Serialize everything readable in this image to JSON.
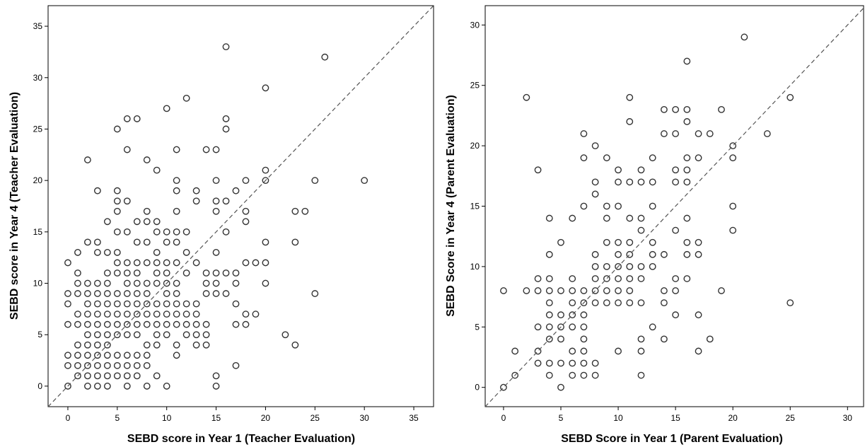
{
  "chart_data": [
    {
      "type": "scatter",
      "xlabel": "SEBD score in Year 1 (Teacher Evaluation)",
      "ylabel": "SEBD score in Year 4 (Teacher Evaluation)",
      "xlim": [
        -2,
        37
      ],
      "ylim": [
        -2,
        37
      ],
      "xticks": [
        0,
        5,
        10,
        15,
        20,
        25,
        30,
        35
      ],
      "yticks": [
        0,
        5,
        10,
        15,
        20,
        25,
        30,
        35
      ],
      "reference_line": "y = x (dashed)",
      "points": [
        [
          0,
          0
        ],
        [
          0,
          2
        ],
        [
          0,
          3
        ],
        [
          0,
          6
        ],
        [
          0,
          8
        ],
        [
          0,
          9
        ],
        [
          0,
          12
        ],
        [
          1,
          1
        ],
        [
          1,
          2
        ],
        [
          1,
          3
        ],
        [
          1,
          4
        ],
        [
          1,
          6
        ],
        [
          1,
          7
        ],
        [
          1,
          9
        ],
        [
          1,
          10
        ],
        [
          1,
          11
        ],
        [
          1,
          13
        ],
        [
          2,
          0
        ],
        [
          2,
          1
        ],
        [
          2,
          2
        ],
        [
          2,
          3
        ],
        [
          2,
          4
        ],
        [
          2,
          5
        ],
        [
          2,
          6
        ],
        [
          2,
          7
        ],
        [
          2,
          8
        ],
        [
          2,
          9
        ],
        [
          2,
          10
        ],
        [
          2,
          14
        ],
        [
          2,
          22
        ],
        [
          3,
          0
        ],
        [
          3,
          1
        ],
        [
          3,
          2
        ],
        [
          3,
          3
        ],
        [
          3,
          4
        ],
        [
          3,
          5
        ],
        [
          3,
          6
        ],
        [
          3,
          7
        ],
        [
          3,
          8
        ],
        [
          3,
          9
        ],
        [
          3,
          10
        ],
        [
          3,
          13
        ],
        [
          3,
          14
        ],
        [
          3,
          19
        ],
        [
          4,
          0
        ],
        [
          4,
          1
        ],
        [
          4,
          2
        ],
        [
          4,
          3
        ],
        [
          4,
          4
        ],
        [
          4,
          5
        ],
        [
          4,
          6
        ],
        [
          4,
          7
        ],
        [
          4,
          8
        ],
        [
          4,
          9
        ],
        [
          4,
          10
        ],
        [
          4,
          11
        ],
        [
          4,
          13
        ],
        [
          4,
          16
        ],
        [
          5,
          1
        ],
        [
          5,
          2
        ],
        [
          5,
          3
        ],
        [
          5,
          5
        ],
        [
          5,
          6
        ],
        [
          5,
          7
        ],
        [
          5,
          8
        ],
        [
          5,
          9
        ],
        [
          5,
          11
        ],
        [
          5,
          12
        ],
        [
          5,
          13
        ],
        [
          5,
          15
        ],
        [
          5,
          17
        ],
        [
          5,
          18
        ],
        [
          5,
          19
        ],
        [
          5,
          25
        ],
        [
          6,
          0
        ],
        [
          6,
          1
        ],
        [
          6,
          2
        ],
        [
          6,
          3
        ],
        [
          6,
          5
        ],
        [
          6,
          6
        ],
        [
          6,
          7
        ],
        [
          6,
          8
        ],
        [
          6,
          9
        ],
        [
          6,
          10
        ],
        [
          6,
          11
        ],
        [
          6,
          12
        ],
        [
          6,
          15
        ],
        [
          6,
          18
        ],
        [
          6,
          23
        ],
        [
          6,
          26
        ],
        [
          7,
          1
        ],
        [
          7,
          2
        ],
        [
          7,
          3
        ],
        [
          7,
          5
        ],
        [
          7,
          6
        ],
        [
          7,
          7
        ],
        [
          7,
          8
        ],
        [
          7,
          9
        ],
        [
          7,
          10
        ],
        [
          7,
          11
        ],
        [
          7,
          12
        ],
        [
          7,
          14
        ],
        [
          7,
          16
        ],
        [
          7,
          26
        ],
        [
          8,
          0
        ],
        [
          8,
          2
        ],
        [
          8,
          3
        ],
        [
          8,
          4
        ],
        [
          8,
          6
        ],
        [
          8,
          7
        ],
        [
          8,
          8
        ],
        [
          8,
          9
        ],
        [
          8,
          10
        ],
        [
          8,
          12
        ],
        [
          8,
          14
        ],
        [
          8,
          16
        ],
        [
          8,
          17
        ],
        [
          8,
          22
        ],
        [
          9,
          1
        ],
        [
          9,
          4
        ],
        [
          9,
          5
        ],
        [
          9,
          6
        ],
        [
          9,
          7
        ],
        [
          9,
          8
        ],
        [
          9,
          10
        ],
        [
          9,
          11
        ],
        [
          9,
          12
        ],
        [
          9,
          13
        ],
        [
          9,
          15
        ],
        [
          9,
          16
        ],
        [
          9,
          21
        ],
        [
          10,
          0
        ],
        [
          10,
          5
        ],
        [
          10,
          6
        ],
        [
          10,
          7
        ],
        [
          10,
          8
        ],
        [
          10,
          9
        ],
        [
          10,
          10
        ],
        [
          10,
          11
        ],
        [
          10,
          12
        ],
        [
          10,
          14
        ],
        [
          10,
          15
        ],
        [
          10,
          27
        ],
        [
          11,
          3
        ],
        [
          11,
          4
        ],
        [
          11,
          6
        ],
        [
          11,
          7
        ],
        [
          11,
          8
        ],
        [
          11,
          9
        ],
        [
          11,
          10
        ],
        [
          11,
          12
        ],
        [
          11,
          14
        ],
        [
          11,
          15
        ],
        [
          11,
          17
        ],
        [
          11,
          19
        ],
        [
          11,
          20
        ],
        [
          11,
          23
        ],
        [
          12,
          5
        ],
        [
          12,
          6
        ],
        [
          12,
          7
        ],
        [
          12,
          8
        ],
        [
          12,
          11
        ],
        [
          12,
          13
        ],
        [
          12,
          15
        ],
        [
          12,
          28
        ],
        [
          13,
          4
        ],
        [
          13,
          5
        ],
        [
          13,
          6
        ],
        [
          13,
          7
        ],
        [
          13,
          8
        ],
        [
          13,
          12
        ],
        [
          13,
          18
        ],
        [
          13,
          19
        ],
        [
          14,
          4
        ],
        [
          14,
          5
        ],
        [
          14,
          6
        ],
        [
          14,
          9
        ],
        [
          14,
          10
        ],
        [
          14,
          11
        ],
        [
          14,
          23
        ],
        [
          15,
          0
        ],
        [
          15,
          1
        ],
        [
          15,
          9
        ],
        [
          15,
          10
        ],
        [
          15,
          11
        ],
        [
          15,
          13
        ],
        [
          15,
          17
        ],
        [
          15,
          18
        ],
        [
          15,
          20
        ],
        [
          15,
          23
        ],
        [
          16,
          9
        ],
        [
          16,
          11
        ],
        [
          16,
          15
        ],
        [
          16,
          18
        ],
        [
          16,
          25
        ],
        [
          16,
          26
        ],
        [
          16,
          33
        ],
        [
          17,
          2
        ],
        [
          17,
          6
        ],
        [
          17,
          8
        ],
        [
          17,
          10
        ],
        [
          17,
          11
        ],
        [
          17,
          19
        ],
        [
          18,
          6
        ],
        [
          18,
          7
        ],
        [
          18,
          12
        ],
        [
          18,
          16
        ],
        [
          18,
          17
        ],
        [
          18,
          20
        ],
        [
          19,
          7
        ],
        [
          19,
          12
        ],
        [
          20,
          10
        ],
        [
          20,
          12
        ],
        [
          20,
          14
        ],
        [
          20,
          20
        ],
        [
          20,
          21
        ],
        [
          20,
          29
        ],
        [
          22,
          5
        ],
        [
          23,
          4
        ],
        [
          23,
          14
        ],
        [
          23,
          17
        ],
        [
          24,
          17
        ],
        [
          25,
          9
        ],
        [
          25,
          20
        ],
        [
          26,
          32
        ],
        [
          30,
          20
        ]
      ]
    },
    {
      "type": "scatter",
      "xlabel": "SEBD Score in Year 1 (Parent Evaluation)",
      "ylabel": "SEBD Score in Year 4 (Parent Evaluation)",
      "xlim": [
        -1.6,
        31.4
      ],
      "ylim": [
        -1.6,
        31.6
      ],
      "xticks": [
        0,
        5,
        10,
        15,
        20,
        25,
        30
      ],
      "yticks": [
        0,
        5,
        10,
        15,
        20,
        25,
        30
      ],
      "reference_line": "y = x (dashed)",
      "points": [
        [
          0,
          0
        ],
        [
          0,
          8
        ],
        [
          1,
          1
        ],
        [
          1,
          3
        ],
        [
          2,
          8
        ],
        [
          2,
          24
        ],
        [
          3,
          2
        ],
        [
          3,
          3
        ],
        [
          3,
          5
        ],
        [
          3,
          8
        ],
        [
          3,
          9
        ],
        [
          3,
          18
        ],
        [
          4,
          1
        ],
        [
          4,
          2
        ],
        [
          4,
          4
        ],
        [
          4,
          5
        ],
        [
          4,
          6
        ],
        [
          4,
          7
        ],
        [
          4,
          8
        ],
        [
          4,
          9
        ],
        [
          4,
          11
        ],
        [
          4,
          14
        ],
        [
          5,
          0
        ],
        [
          5,
          2
        ],
        [
          5,
          4
        ],
        [
          5,
          5
        ],
        [
          5,
          6
        ],
        [
          5,
          8
        ],
        [
          5,
          12
        ],
        [
          6,
          1
        ],
        [
          6,
          2
        ],
        [
          6,
          3
        ],
        [
          6,
          5
        ],
        [
          6,
          6
        ],
        [
          6,
          7
        ],
        [
          6,
          8
        ],
        [
          6,
          9
        ],
        [
          6,
          14
        ],
        [
          7,
          1
        ],
        [
          7,
          2
        ],
        [
          7,
          3
        ],
        [
          7,
          4
        ],
        [
          7,
          5
        ],
        [
          7,
          6
        ],
        [
          7,
          7
        ],
        [
          7,
          8
        ],
        [
          7,
          15
        ],
        [
          7,
          19
        ],
        [
          7,
          21
        ],
        [
          8,
          1
        ],
        [
          8,
          2
        ],
        [
          8,
          7
        ],
        [
          8,
          8
        ],
        [
          8,
          9
        ],
        [
          8,
          10
        ],
        [
          8,
          11
        ],
        [
          8,
          16
        ],
        [
          8,
          17
        ],
        [
          8,
          20
        ],
        [
          9,
          7
        ],
        [
          9,
          8
        ],
        [
          9,
          9
        ],
        [
          9,
          10
        ],
        [
          9,
          12
        ],
        [
          9,
          14
        ],
        [
          9,
          15
        ],
        [
          9,
          19
        ],
        [
          10,
          3
        ],
        [
          10,
          7
        ],
        [
          10,
          8
        ],
        [
          10,
          9
        ],
        [
          10,
          10
        ],
        [
          10,
          11
        ],
        [
          10,
          12
        ],
        [
          10,
          15
        ],
        [
          10,
          17
        ],
        [
          10,
          18
        ],
        [
          11,
          7
        ],
        [
          11,
          8
        ],
        [
          11,
          9
        ],
        [
          11,
          10
        ],
        [
          11,
          11
        ],
        [
          11,
          12
        ],
        [
          11,
          14
        ],
        [
          11,
          17
        ],
        [
          11,
          22
        ],
        [
          11,
          24
        ],
        [
          12,
          1
        ],
        [
          12,
          3
        ],
        [
          12,
          4
        ],
        [
          12,
          7
        ],
        [
          12,
          9
        ],
        [
          12,
          10
        ],
        [
          12,
          13
        ],
        [
          12,
          14
        ],
        [
          12,
          17
        ],
        [
          12,
          18
        ],
        [
          13,
          5
        ],
        [
          13,
          10
        ],
        [
          13,
          11
        ],
        [
          13,
          12
        ],
        [
          13,
          15
        ],
        [
          13,
          17
        ],
        [
          13,
          19
        ],
        [
          14,
          4
        ],
        [
          14,
          7
        ],
        [
          14,
          8
        ],
        [
          14,
          11
        ],
        [
          14,
          21
        ],
        [
          14,
          23
        ],
        [
          15,
          6
        ],
        [
          15,
          8
        ],
        [
          15,
          9
        ],
        [
          15,
          13
        ],
        [
          15,
          17
        ],
        [
          15,
          18
        ],
        [
          15,
          21
        ],
        [
          15,
          23
        ],
        [
          16,
          9
        ],
        [
          16,
          11
        ],
        [
          16,
          12
        ],
        [
          16,
          14
        ],
        [
          16,
          17
        ],
        [
          16,
          18
        ],
        [
          16,
          19
        ],
        [
          16,
          22
        ],
        [
          16,
          23
        ],
        [
          16,
          27
        ],
        [
          17,
          3
        ],
        [
          17,
          6
        ],
        [
          17,
          11
        ],
        [
          17,
          12
        ],
        [
          17,
          19
        ],
        [
          17,
          21
        ],
        [
          18,
          4
        ],
        [
          18,
          21
        ],
        [
          19,
          8
        ],
        [
          19,
          23
        ],
        [
          20,
          13
        ],
        [
          20,
          15
        ],
        [
          20,
          19
        ],
        [
          20,
          20
        ],
        [
          21,
          29
        ],
        [
          23,
          21
        ],
        [
          25,
          7
        ],
        [
          25,
          24
        ]
      ]
    }
  ]
}
